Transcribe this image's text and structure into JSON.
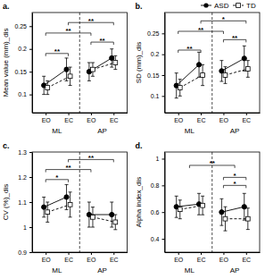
{
  "chart_data": [
    {
      "type": "line",
      "title": "a.",
      "y_label": "Mean value (mm)_dis",
      "categories": [
        "EO",
        "EC",
        "EO",
        "EC"
      ],
      "group_labels": [
        "ML",
        "AP"
      ],
      "ylim": [
        0.06,
        0.28
      ],
      "yticks": [
        0.1,
        0.15,
        0.2,
        0.25
      ],
      "series": [
        {
          "name": "ASD",
          "color": "#000000",
          "marker": "circle",
          "line_style": "solid",
          "values": [
            0.12,
            0.155,
            0.15,
            0.18
          ],
          "errors": [
            0.02,
            0.025,
            0.02,
            0.02
          ]
        },
        {
          "name": "TD",
          "color": "#000000",
          "marker": "square",
          "line_style": "dashed",
          "values": [
            0.115,
            0.14,
            0.155,
            0.17
          ],
          "errors": [
            0.015,
            0.02,
            0.015,
            0.015
          ]
        }
      ],
      "annotations": [
        {
          "text": "**",
          "x": [
            0,
            1
          ],
          "y": 0.19
        },
        {
          "text": "**",
          "x": [
            2,
            3
          ],
          "y": 0.215
        },
        {
          "text": "**",
          "x": [
            0,
            2
          ],
          "y": 0.235
        },
        {
          "text": "**",
          "x": [
            1,
            3
          ],
          "y": 0.258
        }
      ]
    },
    {
      "type": "line",
      "title": "b.",
      "y_label": "SD (mm)_dis",
      "legend": "upper right",
      "categories": [
        "EO",
        "EC",
        "EO",
        "EC"
      ],
      "group_labels": [
        "ML",
        "AP"
      ],
      "ylim": [
        0.06,
        0.3
      ],
      "yticks": [
        0.1,
        0.15,
        0.2,
        0.25
      ],
      "series": [
        {
          "name": "ASD",
          "color": "#000000",
          "marker": "circle",
          "line_style": "solid",
          "values": [
            0.125,
            0.175,
            0.16,
            0.19
          ],
          "errors": [
            0.03,
            0.03,
            0.025,
            0.03
          ]
        },
        {
          "name": "TD",
          "color": "#000000",
          "marker": "square",
          "line_style": "dashed",
          "values": [
            0.12,
            0.15,
            0.15,
            0.165
          ],
          "errors": [
            0.02,
            0.025,
            0.02,
            0.02
          ]
        }
      ],
      "annotations": [
        {
          "text": "**",
          "x": [
            0,
            1
          ],
          "y": 0.21
        },
        {
          "text": "**",
          "x": [
            2,
            3
          ],
          "y": 0.235
        },
        {
          "text": "**",
          "x": [
            0,
            2
          ],
          "y": 0.255
        },
        {
          "text": "*",
          "x": [
            1,
            3
          ],
          "y": 0.28
        }
      ]
    },
    {
      "type": "line",
      "title": "c.",
      "y_label": "CV (%)_dis",
      "categories": [
        "EO",
        "EC",
        "EO",
        "EC"
      ],
      "group_labels": [
        "ML",
        "AP"
      ],
      "ylim": [
        0.9,
        1.3
      ],
      "yticks": [
        0.9,
        1,
        1.1,
        1.2,
        1.3
      ],
      "series": [
        {
          "name": "ASD",
          "color": "#000000",
          "marker": "circle",
          "line_style": "solid",
          "values": [
            1.08,
            1.12,
            1.05,
            1.05
          ],
          "errors": [
            0.04,
            0.05,
            0.05,
            0.05
          ]
        },
        {
          "name": "TD",
          "color": "#000000",
          "marker": "square",
          "line_style": "dashed",
          "values": [
            1.06,
            1.09,
            1.04,
            1.02
          ],
          "errors": [
            0.04,
            0.05,
            0.04,
            0.03
          ]
        }
      ],
      "annotations": [
        {
          "text": "*",
          "x": [
            0,
            1
          ],
          "y": 1.19
        },
        {
          "text": "**",
          "x": [
            0,
            2
          ],
          "y": 1.23
        },
        {
          "text": "**",
          "x": [
            1,
            3
          ],
          "y": 1.27
        }
      ]
    },
    {
      "type": "line",
      "title": "d.",
      "y_label": "Alpha index_dis",
      "categories": [
        "EO",
        "EC",
        "EO",
        "EC"
      ],
      "group_labels": [
        "ML",
        "AP"
      ],
      "ylim": [
        0.3,
        1.05
      ],
      "yticks": [
        0.4,
        0.6,
        0.8,
        1
      ],
      "series": [
        {
          "name": "ASD",
          "color": "#000000",
          "marker": "circle",
          "line_style": "solid",
          "values": [
            0.64,
            0.66,
            0.6,
            0.64
          ],
          "errors": [
            0.08,
            0.08,
            0.1,
            0.1
          ]
        },
        {
          "name": "TD",
          "color": "#000000",
          "marker": "square",
          "line_style": "dashed",
          "values": [
            0.62,
            0.65,
            0.55,
            0.55
          ],
          "errors": [
            0.07,
            0.07,
            0.09,
            0.08
          ]
        }
      ],
      "annotations": [
        {
          "text": "*",
          "x": [
            2,
            3
          ],
          "y": 0.8
        },
        {
          "text": "*",
          "x": [
            2,
            3
          ],
          "y": 0.86
        },
        {
          "text": "**",
          "x": [
            0.5,
            2.5
          ],
          "y": 0.95
        }
      ]
    }
  ]
}
